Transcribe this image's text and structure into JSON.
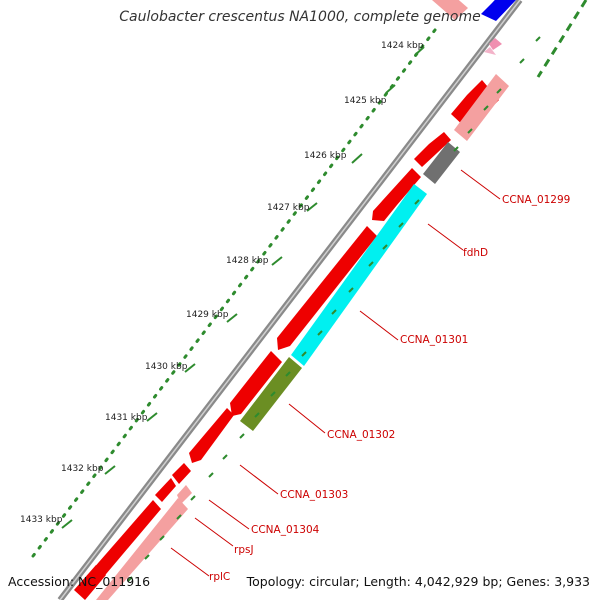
{
  "map": {
    "title": "Caulobacter crescentus NA1000, complete genome",
    "accession": "Accession: NC_011916",
    "summary": "Topology: circular; Length: 4,042,929 bp; Genes: 3,933",
    "colors": {
      "backbone": "#8a8a8a",
      "dotted_ruler": "#2e8b2e",
      "tick_marks": "#2e8b2e",
      "label_text": "#cc0000",
      "callout_line": "#cc0000",
      "cds_red": "#ee0000",
      "cds_pink": "#f4a0a0",
      "cyan": "#00f0f0",
      "olive": "#6b8e23",
      "gray": "#707070",
      "blue": "#0000ee"
    },
    "ticks": [
      "1424 kbp",
      "1425 kbp",
      "1426 kbp",
      "1427 kbp",
      "1428 kbp",
      "1429 kbp",
      "1430 kbp",
      "1431 kbp",
      "1432 kbp",
      "1433 kbp"
    ],
    "gene_labels": [
      {
        "id": "CCNA_01299",
        "text": "CCNA_01299"
      },
      {
        "id": "fdhD",
        "text": "fdhD"
      },
      {
        "id": "CCNA_01301",
        "text": "CCNA_01301"
      },
      {
        "id": "CCNA_01302",
        "text": "CCNA_01302"
      },
      {
        "id": "CCNA_01303",
        "text": "CCNA_01303"
      },
      {
        "id": "CCNA_01304",
        "text": "CCNA_01304"
      },
      {
        "id": "rpsJ",
        "text": "rpsJ"
      },
      {
        "id": "rplC",
        "text": "rplC"
      }
    ]
  }
}
